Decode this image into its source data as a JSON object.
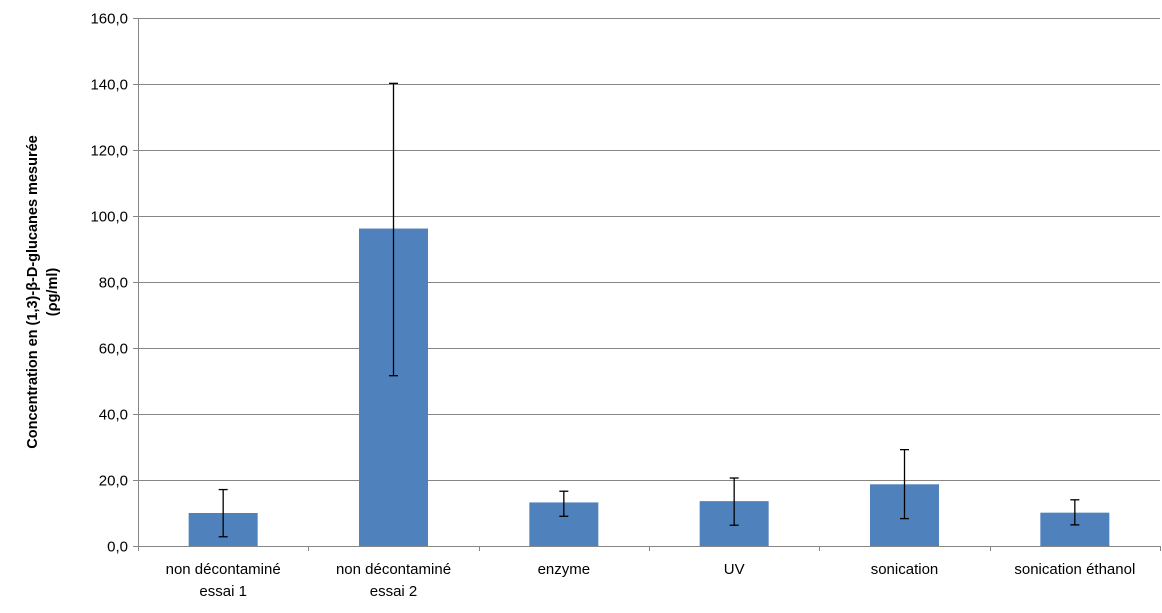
{
  "chart_data": {
    "type": "bar",
    "categories": [
      [
        "non décontaminé",
        "essai 1"
      ],
      [
        "non décontaminé",
        "essai 2"
      ],
      [
        "enzyme"
      ],
      [
        "UV"
      ],
      [
        "sonication"
      ],
      [
        "sonication éthanol"
      ]
    ],
    "series": [
      {
        "values": [
          10.0,
          96.2,
          13.2,
          13.6,
          18.7,
          10.1
        ],
        "error_low": [
          2.8,
          51.6,
          9.0,
          6.3,
          8.3,
          6.4
        ],
        "error_high": [
          17.1,
          140.2,
          16.6,
          20.6,
          29.2,
          14.0
        ],
        "color": "#4f81bd"
      }
    ],
    "ylabel_lines": [
      "Concentration en (1,3)-β-D-glucanes  mesurée",
      "(ρg/ml)"
    ],
    "xlabel": "",
    "title": "",
    "ylim": [
      0,
      160
    ],
    "yticks": [
      0,
      20,
      40,
      60,
      80,
      100,
      120,
      140,
      160
    ],
    "ytick_labels": [
      "0,0",
      "20,0",
      "40,0",
      "60,0",
      "80,0",
      "100,0",
      "120,0",
      "140,0",
      "160,0"
    ],
    "grid": true,
    "legend": "none"
  }
}
